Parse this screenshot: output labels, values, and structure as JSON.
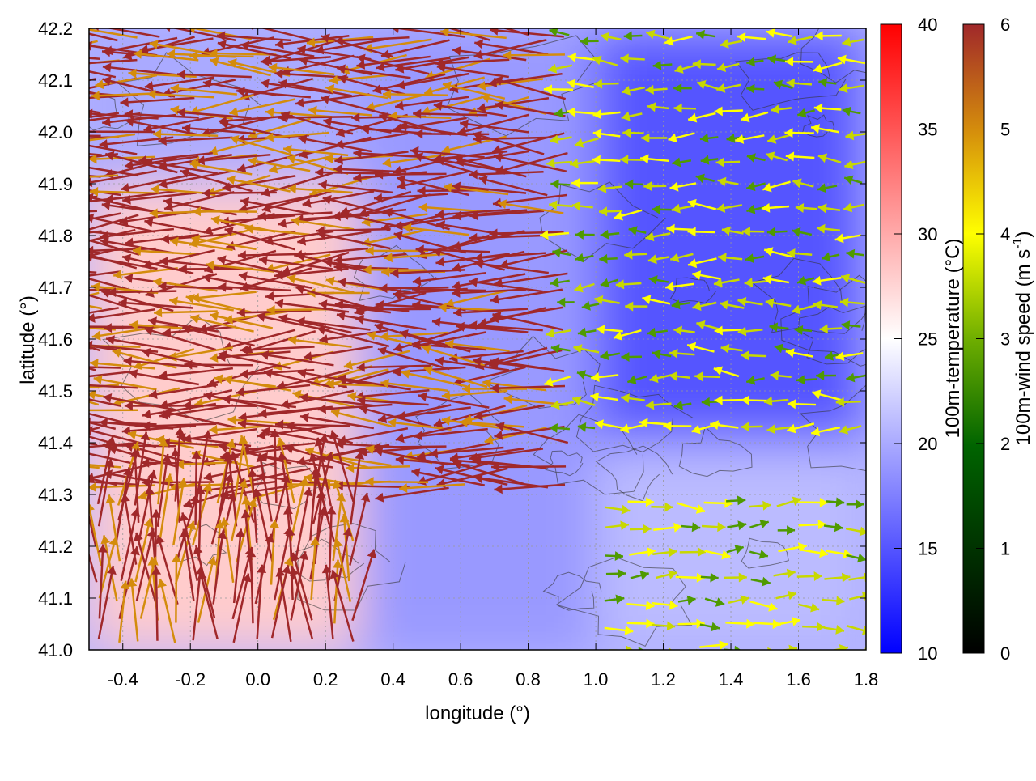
{
  "chart_data": {
    "type": "heatmap",
    "title": "",
    "xlabel": "longitude (°)",
    "ylabel": "latitude (°)",
    "xlim": [
      -0.5,
      1.8
    ],
    "ylim": [
      41.0,
      42.2
    ],
    "x_ticks": [
      "-0.4",
      "-0.2",
      "0.0",
      "0.2",
      "0.4",
      "0.6",
      "0.8",
      "1.0",
      "1.2",
      "1.4",
      "1.6",
      "1.8"
    ],
    "x_tick_values": [
      -0.4,
      -0.2,
      0.0,
      0.2,
      0.4,
      0.6,
      0.8,
      1.0,
      1.2,
      1.4,
      1.6,
      1.8
    ],
    "y_ticks": [
      "41.0",
      "41.1",
      "41.2",
      "41.3",
      "41.4",
      "41.5",
      "41.6",
      "41.7",
      "41.8",
      "41.9",
      "42.0",
      "42.1",
      "42.2"
    ],
    "y_tick_values": [
      41.0,
      41.1,
      41.2,
      41.3,
      41.4,
      41.5,
      41.6,
      41.7,
      41.8,
      41.9,
      42.0,
      42.1,
      42.2
    ],
    "grid": true,
    "temperature_colorbar": {
      "label": "100m-temperature (°C)",
      "range": [
        10,
        40
      ],
      "ticks": [
        "10",
        "15",
        "20",
        "25",
        "30",
        "35",
        "40"
      ],
      "tick_values": [
        10,
        15,
        20,
        25,
        30,
        35,
        40
      ],
      "colors": [
        "#0000ff",
        "#ffffff",
        "#ff0000"
      ]
    },
    "wind_colorbar": {
      "label_main": "100m-wind speed (m s",
      "label_sup": "-1",
      "label_end": ")",
      "range": [
        0,
        6
      ],
      "ticks": [
        "0",
        "1",
        "2",
        "3",
        "4",
        "5",
        "6"
      ],
      "tick_values": [
        0,
        1,
        2,
        3,
        4,
        5,
        6
      ],
      "colors": [
        "#000000",
        "#006400",
        "#7fb800",
        "#ffff00",
        "#d48c0c",
        "#a0282a"
      ]
    },
    "temperature_field_description_regions": [
      {
        "lon_range": [
          -0.5,
          0.3
        ],
        "lat_range": [
          41.0,
          41.9
        ],
        "temp_c": 28
      },
      {
        "lon_range": [
          0.3,
          1.0
        ],
        "lat_range": [
          41.0,
          42.2
        ],
        "temp_c": 19
      },
      {
        "lon_range": [
          1.0,
          1.8
        ],
        "lat_range": [
          41.4,
          42.2
        ],
        "temp_c": 15
      },
      {
        "lon_range": [
          1.0,
          1.8
        ],
        "lat_range": [
          41.0,
          41.4
        ],
        "temp_c": 21
      }
    ],
    "wind_regimes": [
      {
        "lon_range": [
          -0.5,
          0.9
        ],
        "lat_range": [
          41.3,
          42.2
        ],
        "direction": "easterly",
        "speed": 6
      },
      {
        "lon_range": [
          -0.5,
          0.3
        ],
        "lat_range": [
          41.0,
          41.3
        ],
        "direction": "southerly",
        "speed": 6
      },
      {
        "lon_range": [
          0.9,
          1.8
        ],
        "lat_range": [
          41.4,
          42.2
        ],
        "direction": "easterly",
        "speed": 3
      },
      {
        "lon_range": [
          1.0,
          1.8
        ],
        "lat_range": [
          41.0,
          41.3
        ],
        "direction": "westerly",
        "speed": 3
      }
    ]
  }
}
